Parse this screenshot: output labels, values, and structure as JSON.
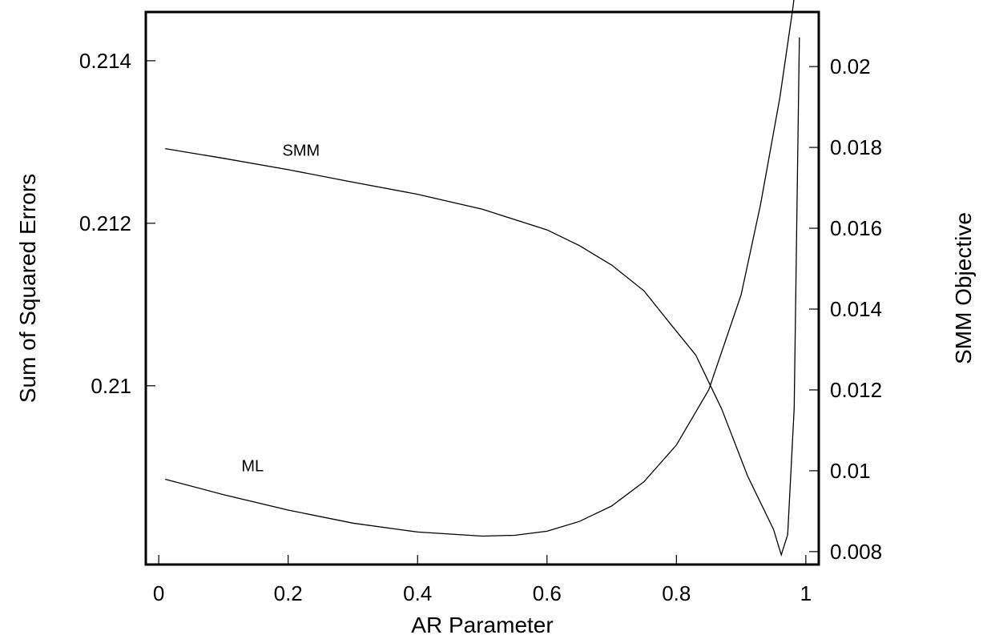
{
  "chart_data": {
    "type": "line",
    "xlabel": "AR Parameter",
    "ylabel_left": "Sum of Squared Errors",
    "ylabel_right": "SMM Objective",
    "xlim": [
      -0.02,
      1.02
    ],
    "ylim_left": [
      0.2078,
      0.2146
    ],
    "ylim_right": [
      0.00768,
      0.02135
    ],
    "xticks": [
      0,
      0.2,
      0.4,
      0.6,
      0.8,
      1
    ],
    "xtick_labels": [
      "0",
      "0.2",
      "0.4",
      "0.6",
      "0.8",
      "1"
    ],
    "yticks_left": [
      0.21,
      0.212,
      0.214
    ],
    "ytick_labels_left": [
      "0.21",
      "0.212",
      "0.214"
    ],
    "yticks_right": [
      0.008,
      0.01,
      0.012,
      0.014,
      0.016,
      0.018,
      0.02
    ],
    "ytick_labels_right": [
      "0.008",
      "0.01",
      "0.012",
      "0.014",
      "0.016",
      "0.018",
      "0.02"
    ],
    "grid": false,
    "series": [
      {
        "name": "ML",
        "axis": "left",
        "x": [
          0.01,
          0.1,
          0.2,
          0.3,
          0.4,
          0.5,
          0.55,
          0.6,
          0.65,
          0.7,
          0.75,
          0.8,
          0.85,
          0.9,
          0.93,
          0.96,
          0.98,
          0.99
        ],
        "y": [
          0.20885,
          0.20866,
          0.20847,
          0.20831,
          0.2082,
          0.20815,
          0.20816,
          0.20821,
          0.20833,
          0.20852,
          0.20882,
          0.20927,
          0.20995,
          0.21112,
          0.21223,
          0.21355,
          0.21465,
          0.21532
        ]
      },
      {
        "name": "SMM",
        "axis": "right",
        "x": [
          0.01,
          0.1,
          0.2,
          0.3,
          0.4,
          0.5,
          0.6,
          0.65,
          0.7,
          0.75,
          0.79,
          0.83,
          0.87,
          0.91,
          0.95,
          0.962,
          0.972,
          0.982,
          0.99
        ],
        "y": [
          0.01797,
          0.01773,
          0.01745,
          0.01714,
          0.01684,
          0.01647,
          0.01596,
          0.01557,
          0.01509,
          0.01445,
          0.01365,
          0.01286,
          0.01153,
          0.00987,
          0.00855,
          0.00792,
          0.00842,
          0.01154,
          0.02072
        ]
      }
    ],
    "annotations": [
      {
        "text": "SMM",
        "x": 0.22,
        "y_left": 0.21283
      },
      {
        "text": "ML",
        "x": 0.145,
        "y_left": 0.20895
      }
    ]
  }
}
